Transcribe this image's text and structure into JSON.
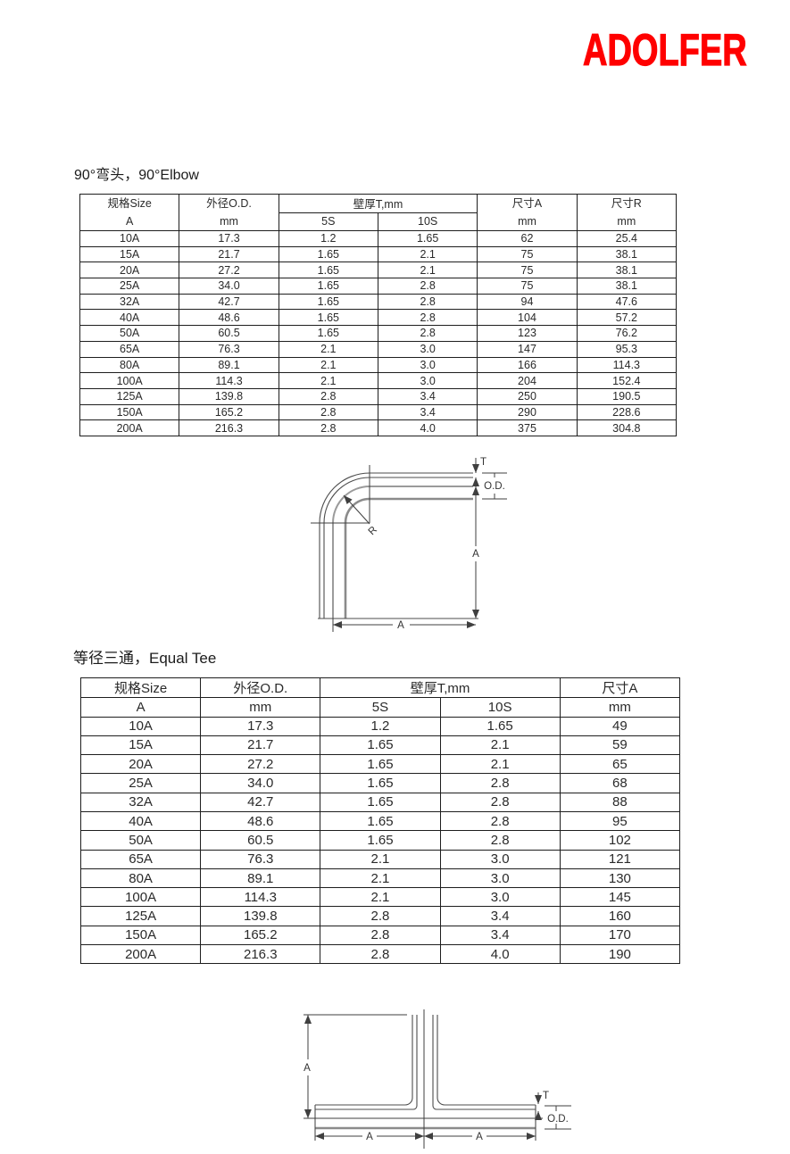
{
  "logo": {
    "text": "ADOLFER",
    "color": "#FF0000"
  },
  "elbow": {
    "title": "90°弯头，90°Elbow",
    "headers": {
      "size": "规格Size",
      "size_unit": "A",
      "od": "外径O.D.",
      "od_unit": "mm",
      "wall": "壁厚T,mm",
      "s5": "5S",
      "s10": "10S",
      "dim_a": "尺寸A",
      "dim_a_unit": "mm",
      "dim_r": "尺寸R",
      "dim_r_unit": "mm"
    },
    "rows": [
      [
        "10A",
        "17.3",
        "1.2",
        "1.65",
        "62",
        "25.4"
      ],
      [
        "15A",
        "21.7",
        "1.65",
        "2.1",
        "75",
        "38.1"
      ],
      [
        "20A",
        "27.2",
        "1.65",
        "2.1",
        "75",
        "38.1"
      ],
      [
        "25A",
        "34.0",
        "1.65",
        "2.8",
        "75",
        "38.1"
      ],
      [
        "32A",
        "42.7",
        "1.65",
        "2.8",
        "94",
        "47.6"
      ],
      [
        "40A",
        "48.6",
        "1.65",
        "2.8",
        "104",
        "57.2"
      ],
      [
        "50A",
        "60.5",
        "1.65",
        "2.8",
        "123",
        "76.2"
      ],
      [
        "65A",
        "76.3",
        "2.1",
        "3.0",
        "147",
        "95.3"
      ],
      [
        "80A",
        "89.1",
        "2.1",
        "3.0",
        "166",
        "114.3"
      ],
      [
        "100A",
        "114.3",
        "2.1",
        "3.0",
        "204",
        "152.4"
      ],
      [
        "125A",
        "139.8",
        "2.8",
        "3.4",
        "250",
        "190.5"
      ],
      [
        "150A",
        "165.2",
        "2.8",
        "3.4",
        "290",
        "228.6"
      ],
      [
        "200A",
        "216.3",
        "2.8",
        "4.0",
        "375",
        "304.8"
      ]
    ],
    "diagram": {
      "t": "T",
      "od": "O.D.",
      "r": "R",
      "a_side": "A",
      "a_bottom": "A"
    }
  },
  "tee": {
    "title": "等径三通，Equal Tee",
    "headers": {
      "size": "规格Size",
      "size_unit": "A",
      "od": "外径O.D.",
      "od_unit": "mm",
      "wall": "壁厚T,mm",
      "s5": "5S",
      "s10": "10S",
      "dim_a": "尺寸A",
      "dim_a_unit": "mm"
    },
    "rows": [
      [
        "10A",
        "17.3",
        "1.2",
        "1.65",
        "49"
      ],
      [
        "15A",
        "21.7",
        "1.65",
        "2.1",
        "59"
      ],
      [
        "20A",
        "27.2",
        "1.65",
        "2.1",
        "65"
      ],
      [
        "25A",
        "34.0",
        "1.65",
        "2.8",
        "68"
      ],
      [
        "32A",
        "42.7",
        "1.65",
        "2.8",
        "88"
      ],
      [
        "40A",
        "48.6",
        "1.65",
        "2.8",
        "95"
      ],
      [
        "50A",
        "60.5",
        "1.65",
        "2.8",
        "102"
      ],
      [
        "65A",
        "76.3",
        "2.1",
        "3.0",
        "121"
      ],
      [
        "80A",
        "89.1",
        "2.1",
        "3.0",
        "130"
      ],
      [
        "100A",
        "114.3",
        "2.1",
        "3.0",
        "145"
      ],
      [
        "125A",
        "139.8",
        "2.8",
        "3.4",
        "160"
      ],
      [
        "150A",
        "165.2",
        "2.8",
        "3.4",
        "170"
      ],
      [
        "200A",
        "216.3",
        "2.8",
        "4.0",
        "190"
      ]
    ],
    "diagram": {
      "t": "T",
      "od": "O.D.",
      "a_left": "A",
      "a_bottom_left": "A",
      "a_bottom_right": "A"
    }
  }
}
